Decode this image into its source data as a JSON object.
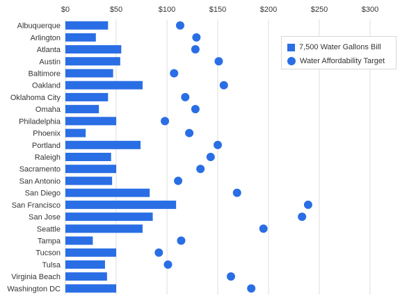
{
  "chart_data": {
    "type": "bar",
    "orientation": "horizontal",
    "categories": [
      "Albuquerque",
      "Arlington",
      "Atlanta",
      "Austin",
      "Baltimore",
      "Oakland",
      "Oklahoma City",
      "Omaha",
      "Philadelphia",
      "Phoenix",
      "Portland",
      "Raleigh",
      "Sacramento",
      "San Antonio",
      "San Diego",
      "San Francisco",
      "San Jose",
      "Seattle",
      "Tampa",
      "Tucson",
      "Tulsa",
      "Virginia Beach",
      "Washington DC"
    ],
    "series": [
      {
        "name": "7,500 Water Gallons Bill",
        "kind": "bar",
        "color": "#2a6ee5",
        "values": [
          42,
          30,
          55,
          54,
          47,
          76,
          42,
          33,
          50,
          20,
          74,
          45,
          50,
          46,
          83,
          109,
          86,
          76,
          27,
          50,
          39,
          41,
          50
        ]
      },
      {
        "name": "Water Affordability Target",
        "kind": "dot",
        "color": "#2a6ee5",
        "values": [
          113,
          129,
          128,
          151,
          107,
          156,
          118,
          128,
          98,
          122,
          150,
          143,
          133,
          111,
          169,
          239,
          233,
          195,
          114,
          92,
          101,
          163,
          183
        ]
      }
    ],
    "xaxis": {
      "position": "top",
      "ticks": [
        0,
        50,
        100,
        150,
        200,
        250,
        300
      ],
      "tick_labels": [
        "$0",
        "$50",
        "$100",
        "$150",
        "$200",
        "$250",
        "$300"
      ],
      "range": [
        0,
        300
      ]
    },
    "title": "",
    "xlabel": "",
    "ylabel": "",
    "grid": true,
    "legend_position": "top-right"
  }
}
